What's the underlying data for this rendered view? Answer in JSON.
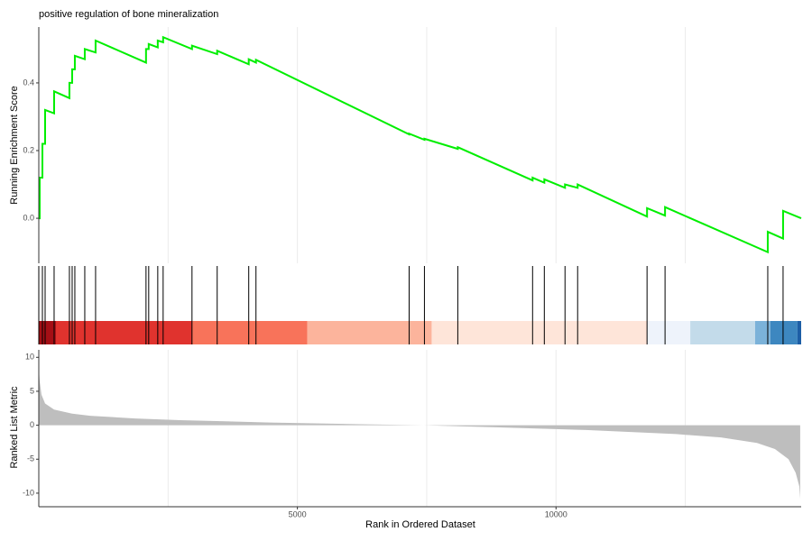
{
  "chart_data": [
    {
      "type": "line",
      "title": "positive regulation of bone mineralization",
      "ylabel": "Running Enrichment Score",
      "color": "#00ee00",
      "xlim": [
        0,
        14740
      ],
      "ylim": [
        -0.133,
        0.565
      ],
      "yticks": [
        {
          "value": 0,
          "label": "0.0"
        },
        0.2,
        0.4
      ],
      "xgrid": [
        2500,
        5000,
        7500,
        10000,
        12500
      ],
      "x": [
        0,
        17,
        17,
        70,
        70,
        122,
        122,
        296,
        296,
        592,
        592,
        645,
        645,
        697,
        697,
        889,
        889,
        1098,
        1098,
        2073,
        2073,
        2125,
        2125,
        2300,
        2300,
        2404,
        2404,
        2962,
        2962,
        3449,
        3449,
        4059,
        4059,
        4199,
        4199,
        7160,
        7160,
        7456,
        7456,
        8101,
        8101,
        9547,
        9547,
        9774,
        9774,
        10174,
        10174,
        10418,
        10418,
        11760,
        11760,
        12108,
        12108,
        14094,
        14094,
        14390,
        14390,
        14740
      ],
      "values": [
        0,
        0,
        0.12,
        0.12,
        0.22,
        0.22,
        0.32,
        0.31,
        0.375,
        0.355,
        0.4,
        0.4,
        0.44,
        0.44,
        0.48,
        0.47,
        0.5,
        0.49,
        0.525,
        0.46,
        0.5,
        0.5,
        0.515,
        0.505,
        0.525,
        0.52,
        0.535,
        0.5,
        0.51,
        0.485,
        0.495,
        0.455,
        0.47,
        0.46,
        0.468,
        0.248,
        0.25,
        0.232,
        0.235,
        0.205,
        0.21,
        0.112,
        0.12,
        0.105,
        0.115,
        0.09,
        0.1,
        0.09,
        0.1,
        0.005,
        0.03,
        0.008,
        0.033,
        -0.1,
        -0.04,
        -0.06,
        0.022,
        0.0
      ]
    },
    {
      "type": "rug",
      "xlim": [
        0,
        14740
      ],
      "x": [
        0,
        70,
        122,
        296,
        592,
        645,
        697,
        889,
        1098,
        2073,
        2125,
        2300,
        2404,
        2962,
        3449,
        4059,
        4199,
        7160,
        7456,
        8101,
        9547,
        9774,
        10174,
        10418,
        11760,
        12108,
        14094,
        14390
      ],
      "bands": [
        {
          "start": 0,
          "end": 331,
          "color": "#a50f15"
        },
        {
          "start": 331,
          "end": 2962,
          "color": "#e0332e"
        },
        {
          "start": 2962,
          "end": 5192,
          "color": "#f8735a"
        },
        {
          "start": 5192,
          "end": 7596,
          "color": "#fcb49c"
        },
        {
          "start": 7596,
          "end": 11760,
          "color": "#fee5d9"
        },
        {
          "start": 11760,
          "end": 12596,
          "color": "#eef3fb"
        },
        {
          "start": 12596,
          "end": 13850,
          "color": "#c3dbea"
        },
        {
          "start": 13850,
          "end": 14146,
          "color": "#7bb2d9"
        },
        {
          "start": 14146,
          "end": 14669,
          "color": "#3d87c0"
        },
        {
          "start": 14669,
          "end": 14740,
          "color": "#1d5ea6"
        }
      ]
    },
    {
      "type": "area",
      "xlabel": "Rank in Ordered Dataset",
      "ylabel": "Ranked List Metric",
      "color": "#bebebe",
      "xlim": [
        0,
        14740
      ],
      "ylim": [
        -12,
        11.1
      ],
      "xticks": [
        5000,
        10000
      ],
      "yticks": [
        10,
        5,
        0,
        -5,
        -10
      ],
      "xgrid": [
        2500,
        5000,
        7500,
        10000,
        12500
      ],
      "x": [
        0,
        17,
        52,
        122,
        296,
        645,
        993,
        1864,
        2735,
        4477,
        6220,
        7439,
        8833,
        10575,
        12317,
        13188,
        13885,
        14233,
        14495,
        14634,
        14704,
        14721
      ],
      "values": [
        8.5,
        6.5,
        4.5,
        3.2,
        2.3,
        1.7,
        1.4,
        1.0,
        0.75,
        0.4,
        0.15,
        0.0,
        -0.3,
        -0.7,
        -1.3,
        -1.8,
        -2.6,
        -3.5,
        -5,
        -7,
        -9,
        -10.8
      ]
    }
  ]
}
